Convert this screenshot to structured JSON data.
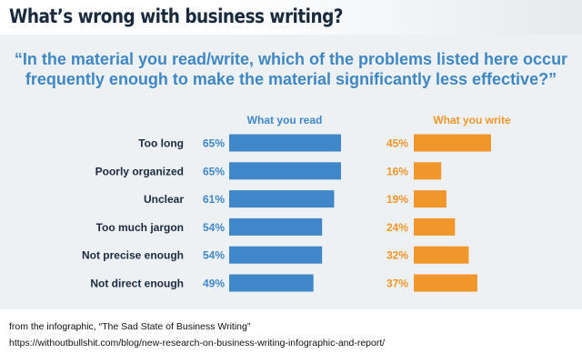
{
  "title": "What’s wrong with business writing?",
  "question": {
    "line1": "“In the material you read/write, which of the problems listed here occur",
    "line2": "frequently enough to make the material significantly less effective?”"
  },
  "colors": {
    "read": "#3f87c9",
    "write": "#f0962a",
    "title": "#1a2a3d",
    "question": "#3f87c4",
    "label": "#1b2a3e"
  },
  "chart_data": {
    "type": "bar",
    "orientation": "horizontal",
    "categories": [
      "Too long",
      "Poorly organized",
      "Unclear",
      "Too much jargon",
      "Not precise enough",
      "Not direct enough"
    ],
    "series": [
      {
        "name": "What you read",
        "values": [
          65,
          65,
          61,
          54,
          54,
          49
        ]
      },
      {
        "name": "What you write",
        "values": [
          45,
          16,
          19,
          24,
          32,
          37
        ]
      }
    ],
    "value_suffix": "%",
    "legend": "column headers above each bar group",
    "grid": false
  },
  "footer": {
    "source": "from the infographic, “The Sad State of Business Writing”",
    "url": "https://withoutbullshit.com/blog/new-research-on-business-writing-infographic-and-report/"
  }
}
